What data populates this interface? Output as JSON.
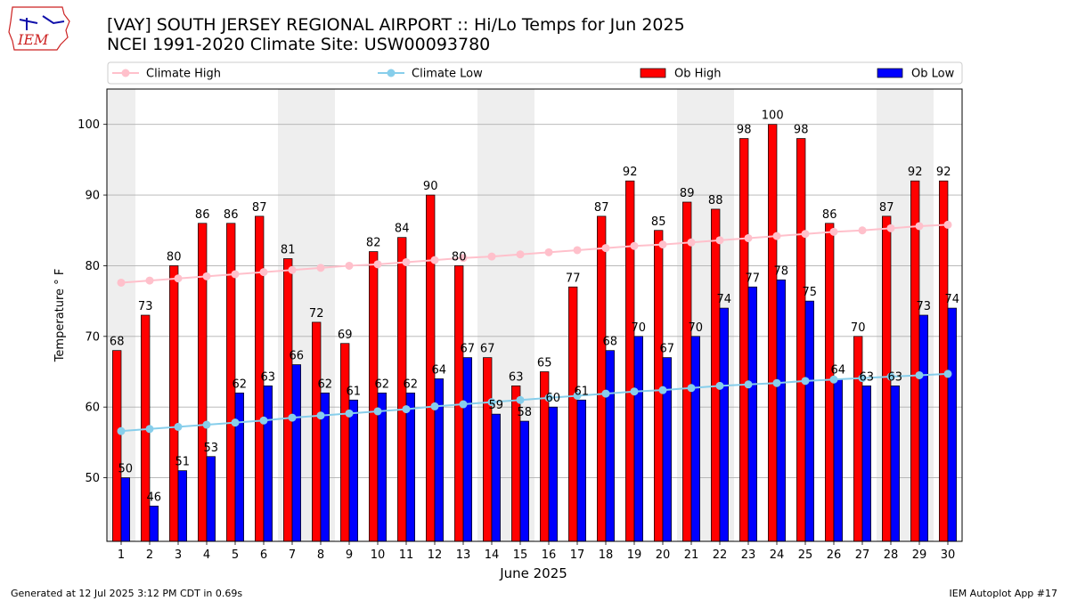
{
  "header": {
    "title_line1": "[VAY] SOUTH JERSEY REGIONAL AIRPORT :: Hi/Lo Temps for Jun 2025",
    "title_line2": "NCEI 1991-2020 Climate Site: USW00093780",
    "logo_text": "IEM"
  },
  "footer": {
    "generated": "Generated at 12 Jul 2025 3:12 PM CDT in 0.69s",
    "app": "IEM Autoplot App #17"
  },
  "colors": {
    "ob_high": "#ff0000",
    "ob_low": "#0000ff",
    "climate_high": "#ffc0cb",
    "climate_low": "#87ceeb",
    "weekend_shade": "#eeeeee",
    "grid": "#b0b0b0",
    "logo": "#cc2222"
  },
  "chart_data": {
    "type": "bar",
    "title": "[VAY] SOUTH JERSEY REGIONAL AIRPORT :: Hi/Lo Temps for Jun 2025",
    "subtitle": "NCEI 1991-2020 Climate Site: USW00093780",
    "xlabel": "June 2025",
    "ylabel": "Temperature ° F",
    "ylim": [
      41,
      105
    ],
    "yticks": [
      50,
      60,
      70,
      80,
      90,
      100
    ],
    "grid": "horizontal",
    "legend_position": "top",
    "categories": [
      "1",
      "2",
      "3",
      "4",
      "5",
      "6",
      "7",
      "8",
      "9",
      "10",
      "11",
      "12",
      "13",
      "14",
      "15",
      "16",
      "17",
      "18",
      "19",
      "20",
      "21",
      "22",
      "23",
      "24",
      "25",
      "26",
      "27",
      "28",
      "29",
      "30"
    ],
    "weekend_days": [
      1,
      7,
      8,
      14,
      15,
      21,
      22,
      28,
      29
    ],
    "series": [
      {
        "name": "Climate High",
        "kind": "line",
        "values": [
          77.6,
          77.9,
          78.2,
          78.5,
          78.8,
          79.1,
          79.4,
          79.7,
          80.0,
          80.2,
          80.5,
          80.8,
          81.1,
          81.3,
          81.6,
          81.9,
          82.2,
          82.5,
          82.8,
          83.0,
          83.3,
          83.6,
          83.9,
          84.2,
          84.5,
          84.8,
          85.0,
          85.3,
          85.6,
          85.8
        ]
      },
      {
        "name": "Climate Low",
        "kind": "line",
        "values": [
          56.6,
          56.9,
          57.2,
          57.5,
          57.8,
          58.1,
          58.5,
          58.8,
          59.1,
          59.4,
          59.7,
          60.1,
          60.4,
          60.7,
          61.0,
          61.3,
          61.6,
          61.9,
          62.2,
          62.4,
          62.7,
          63.0,
          63.2,
          63.4,
          63.7,
          63.9,
          64.1,
          64.3,
          64.5,
          64.7
        ]
      },
      {
        "name": "Ob High",
        "kind": "bar",
        "values": [
          68,
          73,
          80,
          86,
          86,
          87,
          81,
          72,
          69,
          82,
          84,
          90,
          80,
          67,
          63,
          65,
          77,
          87,
          92,
          85,
          89,
          88,
          98,
          100,
          98,
          86,
          70,
          87,
          92,
          92
        ]
      },
      {
        "name": "Ob Low",
        "kind": "bar",
        "values": [
          50,
          46,
          51,
          53,
          62,
          63,
          66,
          62,
          61,
          62,
          62,
          64,
          67,
          59,
          58,
          60,
          61,
          68,
          70,
          67,
          70,
          74,
          77,
          78,
          75,
          64,
          63,
          63,
          73,
          74
        ]
      }
    ]
  }
}
